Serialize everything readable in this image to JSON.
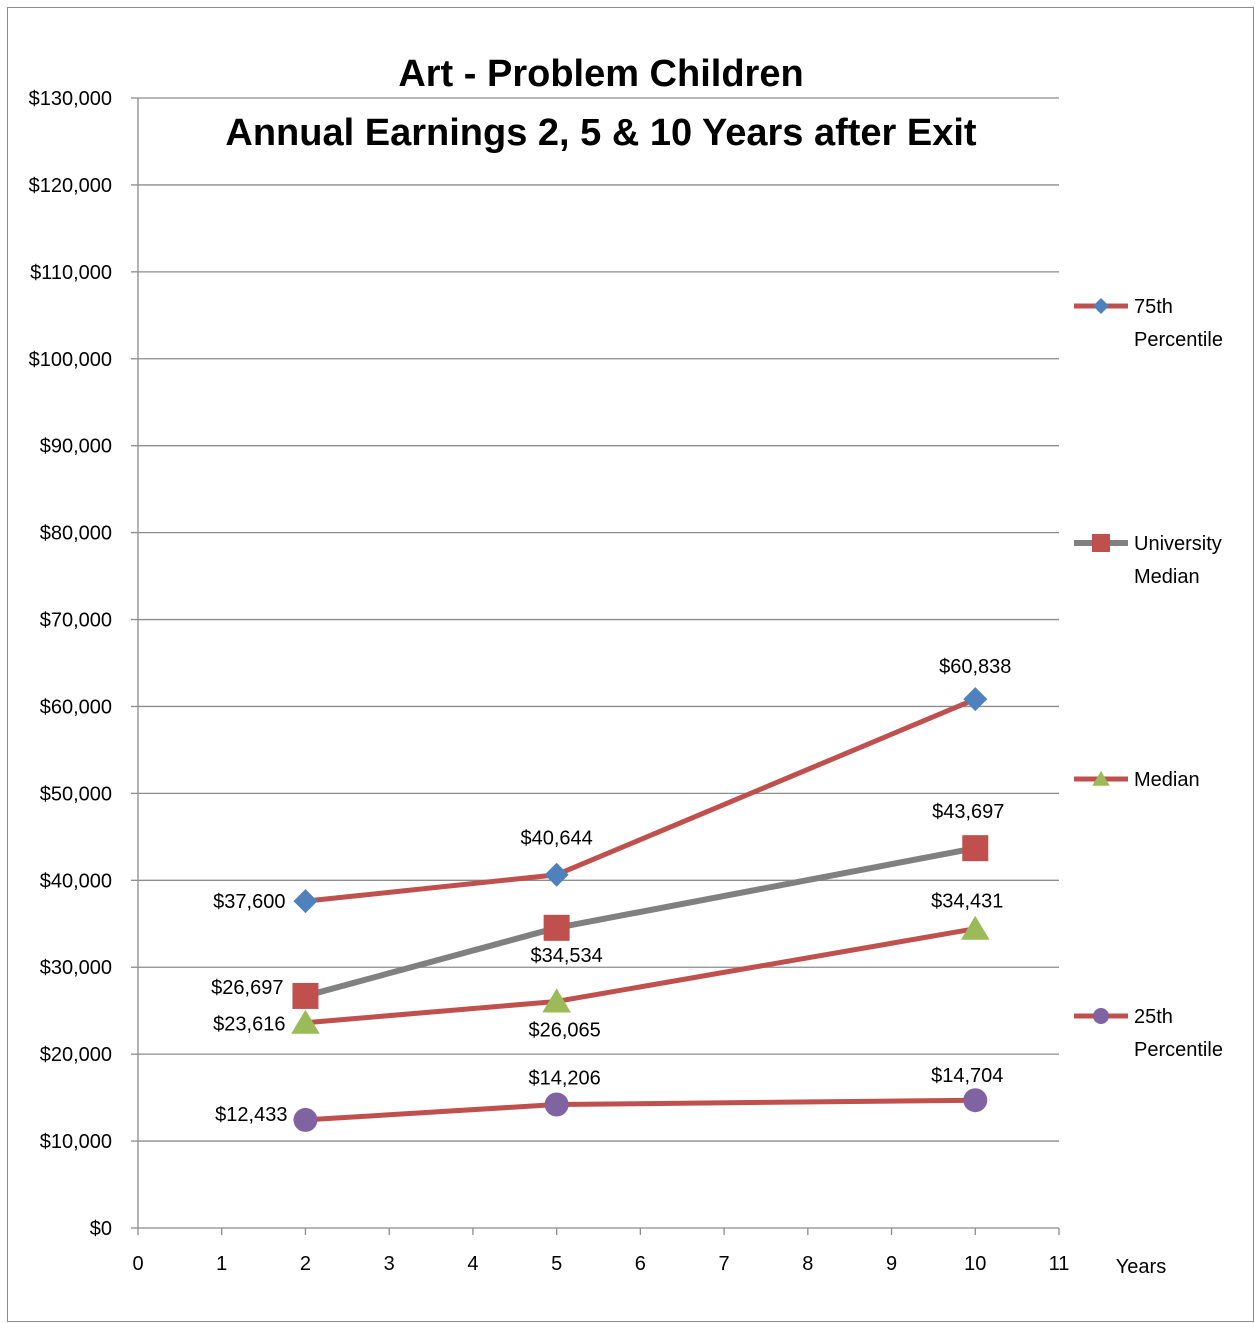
{
  "chart_data": {
    "type": "line",
    "title": [
      "Art - Problem Children",
      "Annual Earnings 2, 5 & 10 Years after Exit"
    ],
    "xlabel": "Years",
    "ylabel": "",
    "xlim": [
      0,
      11
    ],
    "ylim": [
      0,
      130000
    ],
    "x_ticks": [
      "0",
      "1",
      "2",
      "3",
      "4",
      "5",
      "6",
      "7",
      "8",
      "9",
      "10",
      "11"
    ],
    "y_ticks": [
      "$0",
      "$10,000",
      "$20,000",
      "$30,000",
      "$40,000",
      "$50,000",
      "$60,000",
      "$70,000",
      "$80,000",
      "$90,000",
      "$100,000",
      "$110,000",
      "$120,000",
      "$130,000"
    ],
    "grid": "horizontal",
    "legend_position": "right",
    "x": [
      2,
      5,
      10
    ],
    "series": [
      {
        "name": "75th Percentile",
        "legend_lines": [
          "75th",
          "Percentile"
        ],
        "values": [
          37600,
          40644,
          60838
        ],
        "labels": [
          "$37,600",
          "$40,644",
          "$60,838"
        ],
        "line_color": "#c0504d",
        "marker": "diamond",
        "marker_color": "#4f81bd"
      },
      {
        "name": "University Median",
        "legend_lines": [
          "University",
          "Median"
        ],
        "values": [
          26697,
          34534,
          43697
        ],
        "labels": [
          "$26,697",
          "$34,534",
          "$43,697"
        ],
        "line_color": "#808080",
        "marker": "square",
        "marker_color": "#c0504d"
      },
      {
        "name": "Median",
        "legend_lines": [
          "Median"
        ],
        "values": [
          23616,
          26065,
          34431
        ],
        "labels": [
          "$23,616",
          "$26,065",
          "$34,431"
        ],
        "line_color": "#c0504d",
        "marker": "triangle",
        "marker_color": "#9bbb59"
      },
      {
        "name": "25th Percentile",
        "legend_lines": [
          "25th",
          "Percentile"
        ],
        "values": [
          12433,
          14206,
          14704
        ],
        "labels": [
          "$12,433",
          "$14,206",
          "$14,704"
        ],
        "line_color": "#c0504d",
        "marker": "circle",
        "marker_color": "#8064a2"
      }
    ]
  }
}
